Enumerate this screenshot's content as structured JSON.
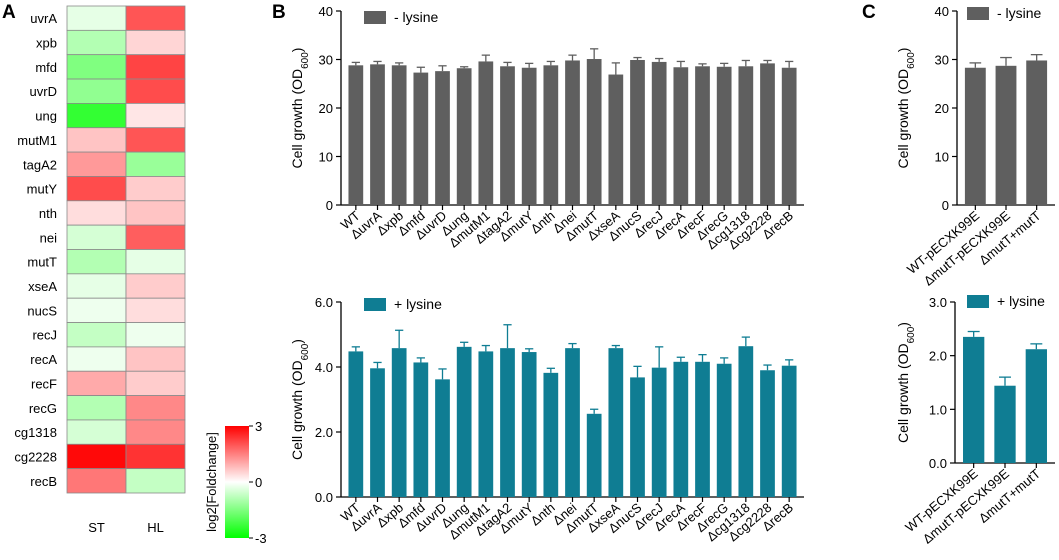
{
  "colors": {
    "gray_bar": "#5f5f5f",
    "teal_bar": "#0f7d93",
    "heat_high": "#ff0000",
    "heat_mid": "#ffffff",
    "heat_low": "#00ff00"
  },
  "chart_data": [
    {
      "panel": "A",
      "type": "heatmap",
      "rows": [
        "uvrA",
        "xpb",
        "mfd",
        "uvrD",
        "ung",
        "mutM1",
        "tagA2",
        "mutY",
        "nth",
        "nei",
        "mutT",
        "xseA",
        "nucS",
        "recJ",
        "recA",
        "recF",
        "recG",
        "cg1318",
        "cg2228",
        "recB"
      ],
      "columns": [
        "ST",
        "HL"
      ],
      "values": [
        [
          -0.3,
          2.0
        ],
        [
          -0.9,
          0.5
        ],
        [
          -1.5,
          2.2
        ],
        [
          -1.3,
          2.1
        ],
        [
          -2.4,
          0.3
        ],
        [
          0.7,
          2.0
        ],
        [
          1.2,
          -1.2
        ],
        [
          2.1,
          0.6
        ],
        [
          0.4,
          0.7
        ],
        [
          -0.5,
          1.9
        ],
        [
          -0.9,
          -0.3
        ],
        [
          -0.3,
          0.6
        ],
        [
          -0.2,
          0.4
        ],
        [
          -0.7,
          -0.2
        ],
        [
          -0.2,
          0.7
        ],
        [
          1.0,
          0.6
        ],
        [
          -0.9,
          1.4
        ],
        [
          -0.5,
          1.4
        ],
        [
          2.9,
          2.4
        ],
        [
          1.6,
          -0.7
        ]
      ],
      "colorbar": {
        "label": "log2[Foldchange]",
        "min": -3,
        "max": 3,
        "ticks": [
          3,
          0,
          -3
        ]
      }
    },
    {
      "panel": "B",
      "type": "bar",
      "legend": "- lysine",
      "ylabel_base": "Cell growth (OD",
      "ylabel_sub": "600",
      "ylabel_end": ")",
      "ylim": [
        0,
        40
      ],
      "yticks": [
        "0",
        "10",
        "20",
        "30",
        "40"
      ],
      "categories": [
        "WT",
        "ΔuvrA",
        "Δxpb",
        "Δmfd",
        "ΔuvrD",
        "Δung",
        "ΔmutM1",
        "ΔtagA2",
        "ΔmutY",
        "Δnth",
        "Δnei",
        "ΔmutT",
        "ΔxseA",
        "ΔnucS",
        "ΔrecJ",
        "ΔrecA",
        "ΔrecF",
        "ΔrecG",
        "Δcg1318",
        "Δcg2228",
        "ΔrecB"
      ],
      "values": [
        28.8,
        29.0,
        28.8,
        27.3,
        27.6,
        28.2,
        29.6,
        28.6,
        28.3,
        28.8,
        29.8,
        30.1,
        26.9,
        29.9,
        29.5,
        28.4,
        28.6,
        28.5,
        28.6,
        29.2,
        28.3
      ],
      "errors": [
        0.6,
        0.6,
        0.5,
        1.1,
        1.1,
        0.3,
        1.3,
        0.8,
        0.9,
        0.8,
        1.1,
        2.1,
        2.4,
        0.5,
        0.7,
        1.2,
        0.5,
        0.7,
        1.2,
        0.6,
        1.3
      ]
    },
    {
      "panel": "B",
      "type": "bar",
      "legend": "+ lysine",
      "ylabel_base": "Cell growth (OD",
      "ylabel_sub": "600",
      "ylabel_end": ")",
      "ylim": [
        0,
        6
      ],
      "yticks": [
        "0.0",
        "2.0",
        "4.0",
        "6.0"
      ],
      "categories": [
        "WT",
        "ΔuvrA",
        "Δxpb",
        "Δmfd",
        "ΔuvrD",
        "Δung",
        "ΔmutM1",
        "ΔtagA2",
        "ΔmutY",
        "Δnth",
        "Δnei",
        "ΔmutT",
        "ΔxseA",
        "ΔnucS",
        "ΔrecJ",
        "ΔrecA",
        "ΔrecF",
        "ΔrecG",
        "Δcg1318",
        "Δcg2228",
        "ΔrecB"
      ],
      "values": [
        4.48,
        3.96,
        4.58,
        4.14,
        3.62,
        4.62,
        4.48,
        4.58,
        4.46,
        3.82,
        4.58,
        2.56,
        4.58,
        3.68,
        3.98,
        4.16,
        4.16,
        4.1,
        4.64,
        3.9,
        4.04
      ],
      "errors": [
        0.14,
        0.18,
        0.55,
        0.14,
        0.32,
        0.14,
        0.18,
        0.72,
        0.1,
        0.14,
        0.14,
        0.14,
        0.08,
        0.34,
        0.64,
        0.14,
        0.22,
        0.18,
        0.28,
        0.16,
        0.18
      ]
    },
    {
      "panel": "C",
      "type": "bar",
      "legend": "- lysine",
      "ylabel_base": "Cell growth (OD",
      "ylabel_sub": "600",
      "ylabel_end": ")",
      "ylim": [
        0,
        40
      ],
      "yticks": [
        "0",
        "10",
        "20",
        "30",
        "40"
      ],
      "categories": [
        "WT-pECXK99E",
        "ΔmutT-pECXK99E",
        "ΔmutT+mutT"
      ],
      "values": [
        28.3,
        28.7,
        29.8
      ],
      "errors": [
        1.0,
        1.7,
        1.2
      ]
    },
    {
      "panel": "C",
      "type": "bar",
      "legend": "+ lysine",
      "ylabel_base": "Cell growth (OD",
      "ylabel_sub": "600",
      "ylabel_end": ")",
      "ylim": [
        0,
        3
      ],
      "yticks": [
        "0.0",
        "1.0",
        "2.0",
        "3.0"
      ],
      "categories": [
        "WT-pECXK99E",
        "ΔmutT-pECXK99E",
        "ΔmutT+mutT"
      ],
      "values": [
        2.35,
        1.44,
        2.12
      ],
      "errors": [
        0.1,
        0.16,
        0.1
      ]
    }
  ],
  "panel_labels": [
    "A",
    "B",
    "C"
  ]
}
